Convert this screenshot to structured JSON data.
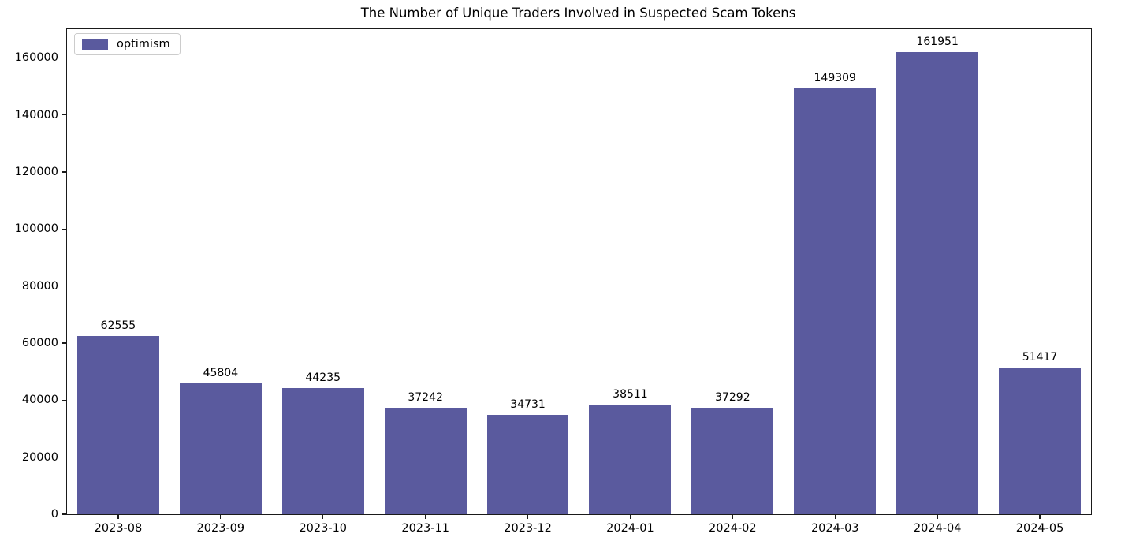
{
  "chart_data": {
    "type": "bar",
    "title": "The Number of Unique Traders Involved in Suspected Scam Tokens",
    "categories": [
      "2023-08",
      "2023-09",
      "2023-10",
      "2023-11",
      "2023-12",
      "2024-01",
      "2024-02",
      "2024-03",
      "2024-04",
      "2024-05"
    ],
    "series": [
      {
        "name": "optimism",
        "color": "#5a5a9e",
        "values": [
          62555,
          45804,
          44235,
          37242,
          34731,
          38511,
          37292,
          149309,
          161951,
          51417
        ]
      }
    ],
    "xlabel": "",
    "ylabel": "",
    "ylim": [
      0,
      170000
    ],
    "yticks": [
      0,
      20000,
      40000,
      60000,
      80000,
      100000,
      120000,
      140000,
      160000
    ],
    "grid": false,
    "bar_width_fraction": 0.8,
    "value_labels_shown": true,
    "legend": {
      "position": "upper-left",
      "entries": [
        "optimism"
      ]
    }
  }
}
